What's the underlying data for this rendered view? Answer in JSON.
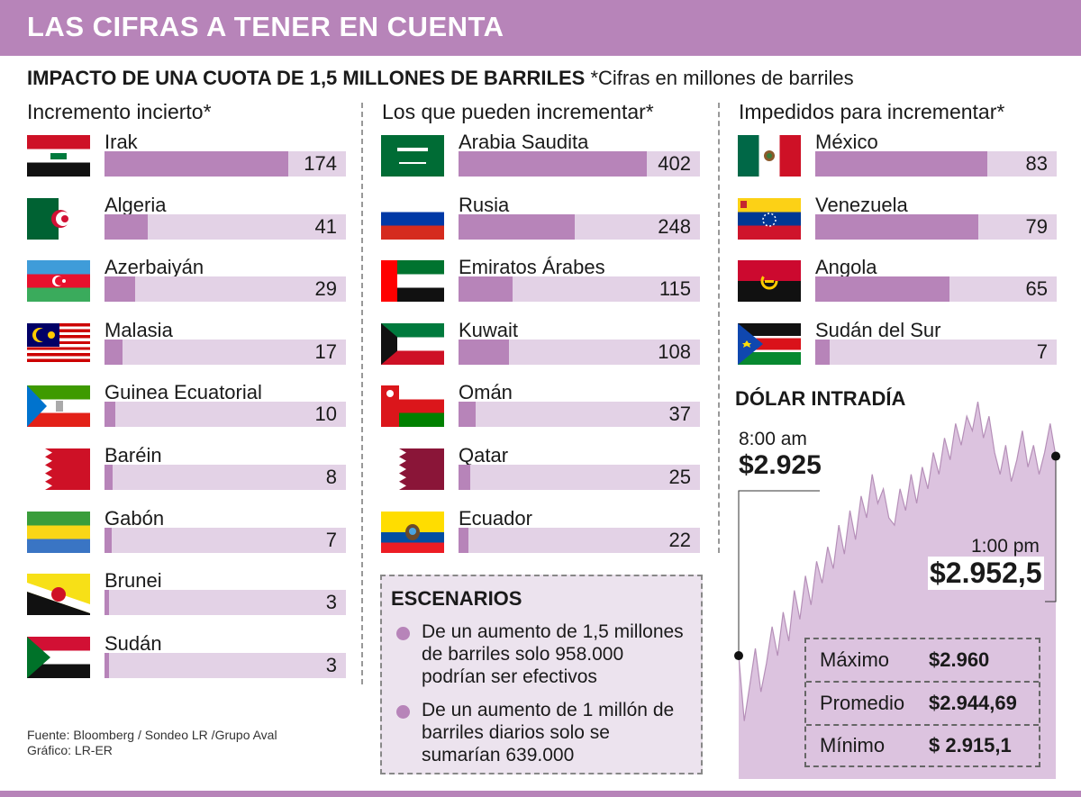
{
  "header": {
    "title": "LAS CIFRAS A TENER EN CUENTA",
    "subtitle_bold": "IMPACTO DE UNA CUOTA DE 1,5 MILLONES DE BARRILES",
    "subtitle_note": "*Cifras en millones de barriles"
  },
  "columns": [
    {
      "title": "Incremento incierto*"
    },
    {
      "title": "Los que pueden incrementar*"
    },
    {
      "title": "Impedidos para incrementar*"
    }
  ],
  "chart_data": [
    {
      "type": "bar",
      "title": "Incremento incierto*",
      "unit": "millones de barriles",
      "xlim": [
        0,
        174
      ],
      "categories": [
        "Irak",
        "Algeria",
        "Azerbaiyán",
        "Malasia",
        "Guinea Ecuatorial",
        "Baréin",
        "Gabón",
        "Brunei",
        "Sudán"
      ],
      "values": [
        174,
        41,
        29,
        17,
        10,
        8,
        7,
        3,
        3
      ]
    },
    {
      "type": "bar",
      "title": "Los que pueden incrementar*",
      "unit": "millones de barriles",
      "xlim": [
        0,
        402
      ],
      "categories": [
        "Arabia Saudita",
        "Rusia",
        "Emiratos Árabes",
        "Kuwait",
        "Omán",
        "Qatar",
        "Ecuador"
      ],
      "values": [
        402,
        248,
        115,
        108,
        37,
        25,
        22
      ]
    },
    {
      "type": "bar",
      "title": "Impedidos para incrementar*",
      "unit": "millones de barriles",
      "xlim": [
        0,
        91
      ],
      "categories": [
        "México",
        "Venezuela",
        "Angola",
        "Sudán del Sur"
      ],
      "values": [
        83,
        79,
        65,
        7
      ]
    },
    {
      "type": "area",
      "title": "DÓLAR INTRADÍA",
      "x_start_label": "8:00 am",
      "x_end_label": "1:00 pm",
      "start_label": "$2.925",
      "end_label": "$2.952,5",
      "start": 2925,
      "end": 2952.5,
      "ylim": [
        2908,
        2962
      ],
      "values": [
        2925,
        2916,
        2921,
        2926,
        2920,
        2924,
        2929,
        2925,
        2931,
        2927,
        2934,
        2930,
        2936,
        2932,
        2938,
        2935,
        2940,
        2937,
        2943,
        2939,
        2945,
        2941,
        2947,
        2944,
        2950,
        2946,
        2948,
        2944,
        2943,
        2948,
        2945,
        2950,
        2946,
        2951,
        2948,
        2953,
        2950,
        2955,
        2952,
        2957,
        2954,
        2958,
        2956,
        2960,
        2955,
        2958,
        2953,
        2950,
        2954,
        2949,
        2952,
        2956,
        2951,
        2954,
        2950,
        2953,
        2957,
        2952.5
      ]
    }
  ],
  "scenarios": {
    "title": "ESCENARIOS",
    "items": [
      "De un aumento de 1,5 millones de barriles solo 958.000 podrían ser efectivos",
      "De un aumento de 1 millón de barriles diarios solo se sumarían 639.000"
    ]
  },
  "dolar": {
    "stats": [
      {
        "label": "Máximo",
        "value": "$2.960"
      },
      {
        "label": "Promedio",
        "value": "$2.944,69"
      },
      {
        "label": "Mínimo",
        "value": "$ 2.915,1"
      }
    ]
  },
  "source": {
    "line1": "Fuente: Bloomberg / Sondeo LR /Grupo Aval",
    "line2": "Gráfico: LR-ER"
  },
  "colors": {
    "accent": "#b784b9",
    "track": "#e3d2e6",
    "area": "#dcc3df"
  }
}
